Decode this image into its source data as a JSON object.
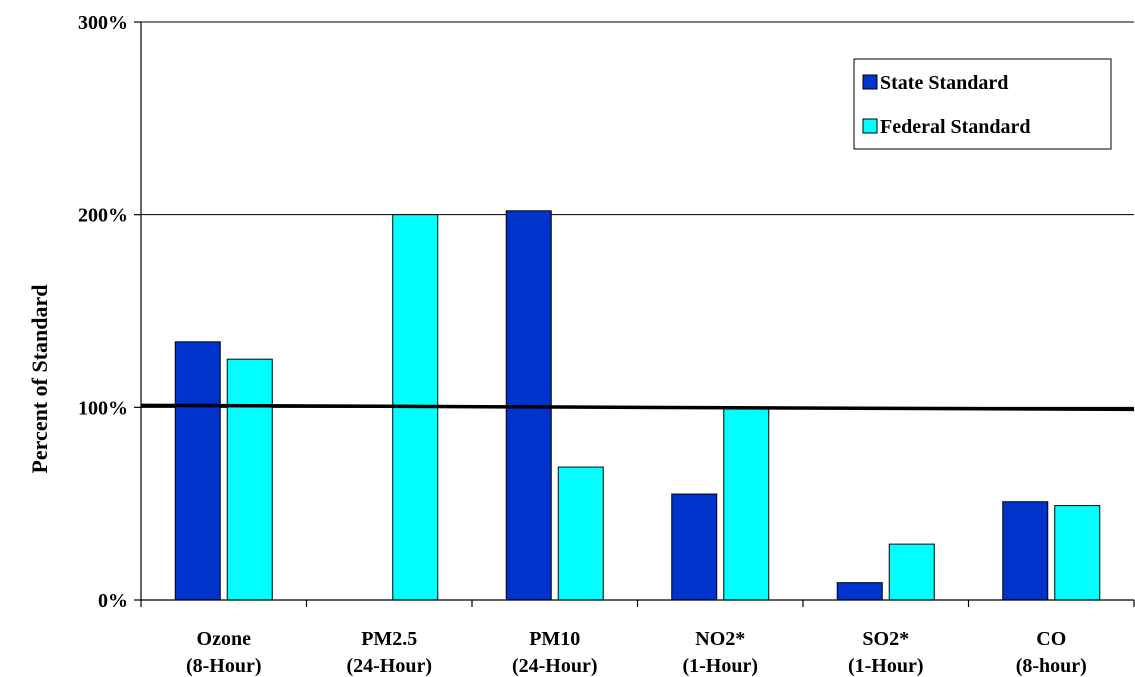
{
  "chart_data": {
    "type": "bar",
    "ylabel": "Percent of Standard",
    "ylim": [
      0,
      300
    ],
    "yticks": [
      "0%",
      "100%",
      "200%",
      "300%"
    ],
    "categories": [
      [
        "Ozone",
        "(8-Hour)"
      ],
      [
        "PM2.5",
        "(24-Hour)"
      ],
      [
        "PM10",
        "(24-Hour)"
      ],
      [
        "NO2*",
        "(1-Hour)"
      ],
      [
        "SO2*",
        "(1-Hour)"
      ],
      [
        "CO",
        "(8-hour)"
      ]
    ],
    "series": [
      {
        "name": "State Standard",
        "color": "#0033cc",
        "values": [
          134,
          null,
          202,
          55,
          9,
          51
        ]
      },
      {
        "name": "Federal Standard",
        "color": "#00ffff",
        "values": [
          125,
          200,
          69,
          100,
          29,
          49
        ]
      }
    ],
    "reference_line": 100,
    "grid": true,
    "legend_position": "top-right"
  }
}
